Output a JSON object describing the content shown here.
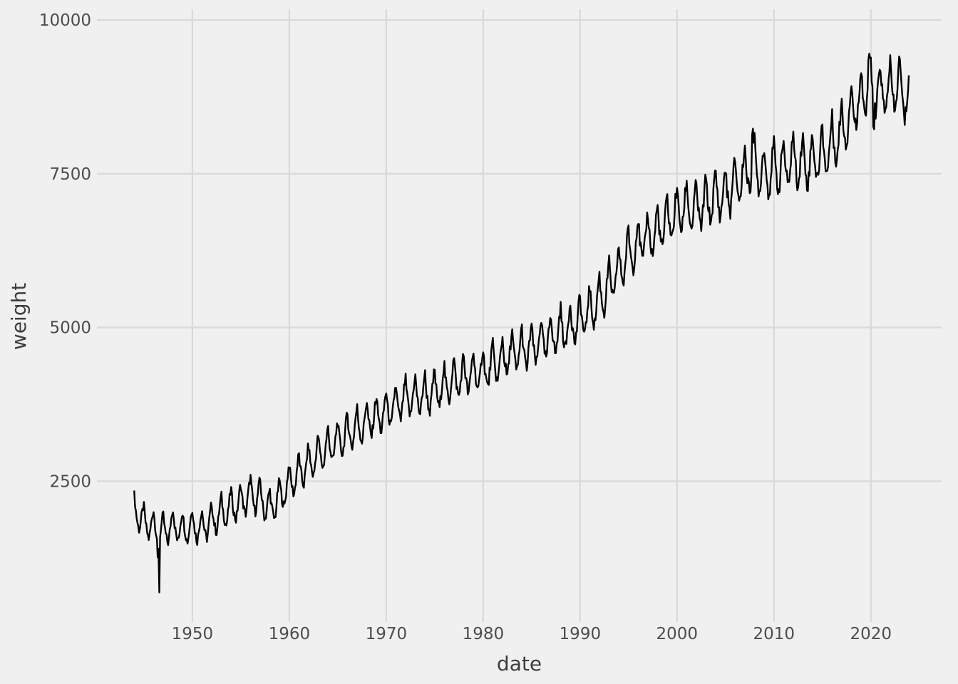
{
  "figure": {
    "background_color": "#f0f0f0",
    "panel_background_color": "#f0f0f0",
    "gridline_color": "#d9d9d9",
    "tick_label_color": "#4d4d4d",
    "axis_title_color": "#3d3d3d"
  },
  "chart_data": {
    "type": "line",
    "title": "",
    "xlabel": "date",
    "ylabel": "weight",
    "legend": "none",
    "grid": "major-only",
    "line_color": "#000000",
    "line_width": 2.4,
    "series_name": "weight",
    "x_ticks": [
      1950,
      1960,
      1970,
      1980,
      1990,
      2000,
      2010,
      2020
    ],
    "x_tick_labels": [
      "1950",
      "1960",
      "1970",
      "1980",
      "1990",
      "2000",
      "2010",
      "2020"
    ],
    "y_ticks": [
      2500,
      5000,
      7500,
      10000
    ],
    "y_tick_labels": [
      "2500",
      "5000",
      "7500",
      "10000"
    ],
    "x_axis_range": [
      1940.15,
      2027.3
    ],
    "y_axis_range": [
      210,
      10175
    ],
    "x_data_range": [
      1944.0,
      2023.92
    ],
    "y_data_range": [
      650,
      9720
    ],
    "sampling": "monthly",
    "description": "Noisy monthly time series of weight vs date, rising from roughly 1800-2200 in the mid 1940s to roughly 8500-9500 by the early 2020s, with annual seasonal oscillation, a deep downward spike to about 650 in late 1946, a spike to about 8600 in 2007, a maximum of about 9720 near 2020 and a brief dip to about 7750 in mid 2020.",
    "trend_anchors": {
      "years": [
        1944,
        1945,
        1946,
        1947,
        1948,
        1949,
        1950,
        1951,
        1952,
        1953,
        1954,
        1955,
        1956,
        1957,
        1958,
        1959,
        1960,
        1961,
        1962,
        1963,
        1964,
        1965,
        1966,
        1967,
        1968,
        1969,
        1970,
        1971,
        1972,
        1973,
        1974,
        1975,
        1976,
        1977,
        1978,
        1979,
        1980,
        1981,
        1982,
        1983,
        1984,
        1985,
        1986,
        1987,
        1988,
        1989,
        1990,
        1991,
        1992,
        1993,
        1994,
        1995,
        1996,
        1997,
        1998,
        1999,
        2000,
        2001,
        2002,
        2003,
        2004,
        2005,
        2006,
        2007,
        2008,
        2009,
        2010,
        2011,
        2012,
        2013,
        2014,
        2015,
        2016,
        2017,
        2018,
        2019,
        2020,
        2021,
        2022,
        2023,
        2024
      ],
      "values": [
        2050,
        1850,
        1775,
        1700,
        1800,
        1750,
        1800,
        1775,
        1875,
        2000,
        2100,
        2175,
        2300,
        2250,
        2075,
        2250,
        2500,
        2650,
        2800,
        2950,
        3075,
        3175,
        3300,
        3400,
        3500,
        3575,
        3650,
        3750,
        3850,
        3900,
        3925,
        3975,
        4075,
        4175,
        4225,
        4275,
        4325,
        4400,
        4500,
        4600,
        4650,
        4700,
        4800,
        4875,
        4975,
        5050,
        5150,
        5300,
        5500,
        5700,
        5950,
        6250,
        6400,
        6500,
        6600,
        6750,
        6900,
        7000,
        6950,
        7050,
        7150,
        7200,
        7350,
        7550,
        7650,
        7550,
        7600,
        7650,
        7750,
        7700,
        7750,
        7850,
        8000,
        8250,
        8550,
        8800,
        8950,
        8850,
        8900,
        8950,
        8650
      ]
    },
    "seasonal_pattern": [
      1.0,
      0.45,
      0.0,
      -0.35,
      -0.65,
      -0.9,
      -1.0,
      -0.75,
      -0.35,
      0.1,
      0.5,
      0.85
    ],
    "seasonal_amplitude_start_end": [
      240,
      430
    ],
    "noise_sd_start_end": [
      70,
      150
    ],
    "anomalies": [
      {
        "year": 1946.42,
        "value": 1250
      },
      {
        "year": 1946.58,
        "value": 660
      },
      {
        "year": 2007.79,
        "value": 8620
      },
      {
        "year": 2019.79,
        "value": 9720
      },
      {
        "year": 2020.29,
        "value": 7760
      }
    ]
  }
}
